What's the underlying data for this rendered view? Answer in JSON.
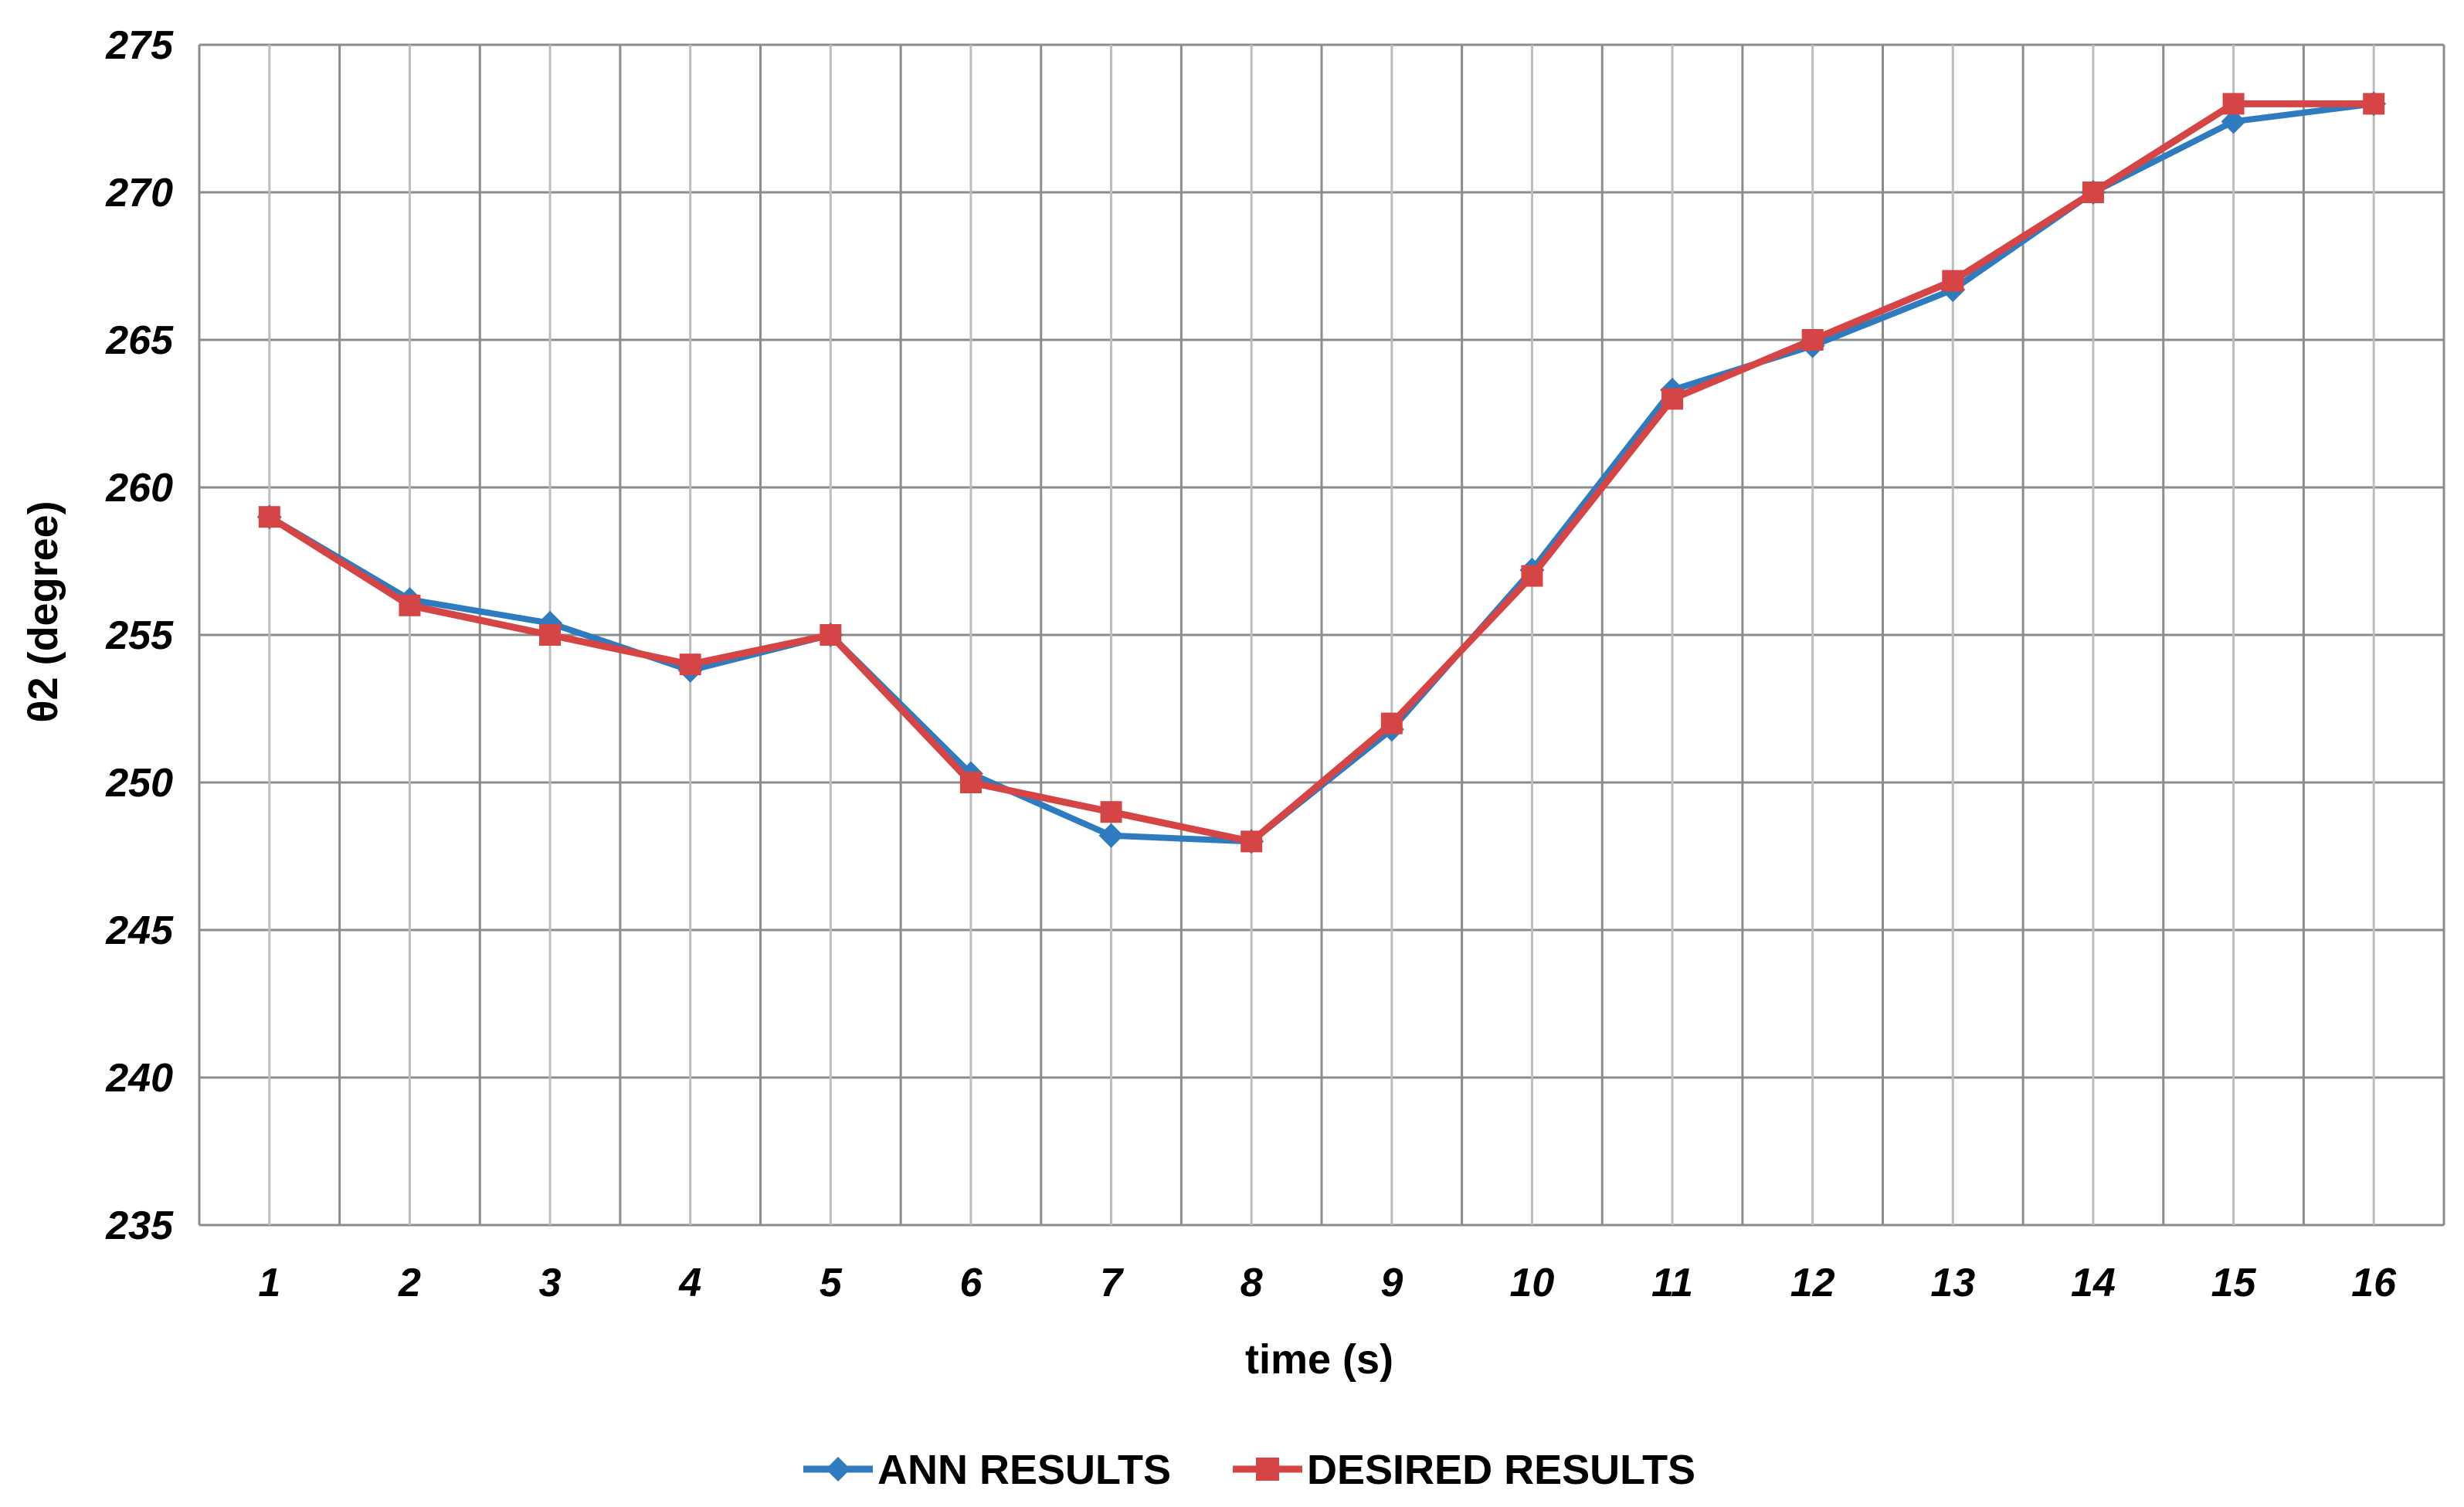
{
  "chart_data": {
    "type": "line",
    "title": "",
    "xlabel": "time (s)",
    "ylabel": "θ2 (degree)",
    "categories": [
      "1",
      "2",
      "3",
      "4",
      "5",
      "6",
      "7",
      "8",
      "9",
      "10",
      "11",
      "12",
      "13",
      "14",
      "15",
      "16"
    ],
    "ylim": [
      235,
      275
    ],
    "yticks": [
      235,
      240,
      245,
      250,
      255,
      260,
      265,
      270,
      275
    ],
    "grid": true,
    "legend_position": "bottom",
    "series": [
      {
        "name": "ANN RESULTS",
        "color": "#2E7BC0",
        "marker": "diamond",
        "values": [
          259,
          256.2,
          255.4,
          253.8,
          255,
          250.3,
          248.2,
          248,
          251.8,
          257.2,
          263.3,
          264.8,
          266.7,
          270,
          272.4,
          273
        ]
      },
      {
        "name": "DESIRED RESULTS",
        "color": "#D64545",
        "marker": "square",
        "values": [
          259,
          256,
          255,
          254,
          255,
          250,
          249,
          248,
          252,
          257,
          263,
          265,
          267,
          270,
          273,
          273
        ]
      }
    ]
  }
}
